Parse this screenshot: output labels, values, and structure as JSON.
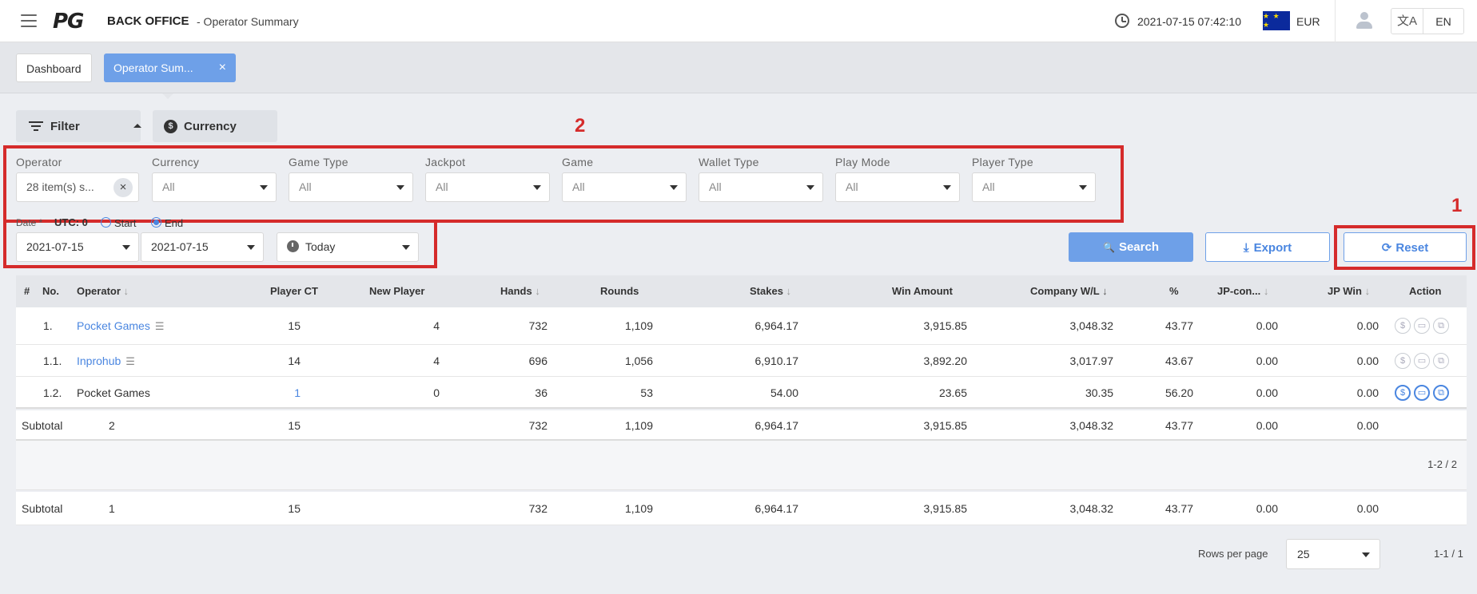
{
  "header": {
    "logo": "PG",
    "brand": "BACK OFFICE",
    "subtitle": "- Operator Summary",
    "datetime": "2021-07-15 07:42:10",
    "flag_stars": "★ ★ ★",
    "currency": "EUR",
    "language": "EN",
    "translate_glyph": "文A"
  },
  "tabs": [
    {
      "label": "Dashboard"
    },
    {
      "label": "Operator Sum..."
    }
  ],
  "toolbar": {
    "filter_label": "Filter",
    "currency_label": "Currency",
    "currency_glyph": "$"
  },
  "annotations": {
    "label_1": "1",
    "label_2": "2"
  },
  "filters": [
    {
      "label": "Operator",
      "value": "28 item(s) s...",
      "clear": "×"
    },
    {
      "label": "Currency",
      "value": "All"
    },
    {
      "label": "Game Type",
      "value": "All"
    },
    {
      "label": "Jackpot",
      "value": "All"
    },
    {
      "label": "Game",
      "value": "All"
    },
    {
      "label": "Wallet Type",
      "value": "All"
    },
    {
      "label": "Play Mode",
      "value": "All"
    },
    {
      "label": "Player Type",
      "value": "All"
    }
  ],
  "date": {
    "label": "Date *",
    "utc": "UTC: 0",
    "start_label": "Start",
    "end_label": "End",
    "from": "2021-07-15",
    "to": "2021-07-15",
    "preset": "Today"
  },
  "actions": {
    "search": "Search",
    "export": "Export",
    "reset": "Reset",
    "search_glyph": "🔍",
    "export_glyph": "⤓",
    "reset_glyph": "⟳"
  },
  "table": {
    "columns": [
      "#",
      "No.",
      "Operator",
      "Player CT",
      "New Player",
      "Hands",
      "Rounds",
      "Stakes",
      "Win Amount",
      "Company W/L",
      "%",
      "JP-con...",
      "JP Win",
      "Action"
    ],
    "sort_glyph": "↓",
    "rows": [
      {
        "no": "1.",
        "operator": "Pocket Games",
        "player_ct": "15",
        "new_player": "4",
        "hands": "732",
        "rounds": "1,109",
        "stakes": "6,964.17",
        "win_amount": "3,915.85",
        "company_wl": "3,048.32",
        "pct": "43.77",
        "jp_con": "0.00",
        "jp_win": "0.00"
      },
      {
        "no": "1.1.",
        "operator": "Inprohub",
        "player_ct": "14",
        "new_player": "4",
        "hands": "696",
        "rounds": "1,056",
        "stakes": "6,910.17",
        "win_amount": "3,892.20",
        "company_wl": "3,017.97",
        "pct": "43.67",
        "jp_con": "0.00",
        "jp_win": "0.00"
      },
      {
        "no": "1.2.",
        "operator": "Pocket Games",
        "player_ct": "1",
        "new_player": "0",
        "hands": "36",
        "rounds": "53",
        "stakes": "54.00",
        "win_amount": "23.65",
        "company_wl": "30.35",
        "pct": "56.20",
        "jp_con": "0.00",
        "jp_win": "0.00"
      }
    ],
    "action_glyphs": [
      "$",
      "▭",
      "⧉"
    ],
    "subtotal_1": {
      "label": "Subtotal",
      "count": "2",
      "player_ct": "15",
      "hands": "732",
      "rounds": "1,109",
      "stakes": "6,964.17",
      "win_amount": "3,915.85",
      "company_wl": "3,048.32",
      "pct": "43.77",
      "jp_con": "0.00",
      "jp_win": "0.00"
    },
    "range_1": "1-2 / 2",
    "subtotal_2": {
      "label": "Subtotal",
      "count": "1",
      "player_ct": "15",
      "hands": "732",
      "rounds": "1,109",
      "stakes": "6,964.17",
      "win_amount": "3,915.85",
      "company_wl": "3,048.32",
      "pct": "43.77",
      "jp_con": "0.00",
      "jp_win": "0.00"
    }
  },
  "pagination": {
    "rows_per_page_label": "Rows per page",
    "rows_per_page": "25",
    "range": "1-1 / 1"
  },
  "colors": {
    "accent": "#6ea0e8",
    "link": "#4a86e0",
    "annotation": "#d52b2b"
  }
}
